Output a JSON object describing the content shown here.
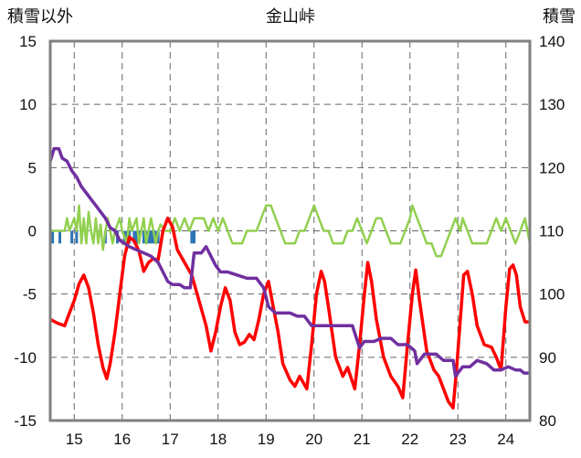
{
  "chart_data": {
    "type": "line",
    "title": "金山峠",
    "y_left_label": "積雪以外",
    "y_right_label": "積雪",
    "y_left_range": [
      -15,
      15
    ],
    "y_left_ticks": [
      "15",
      "10",
      "5",
      "0",
      "-5",
      "-10",
      "-15"
    ],
    "y_right_range": [
      80,
      140
    ],
    "y_right_ticks": [
      "140",
      "130",
      "120",
      "110",
      "100",
      "90",
      "80"
    ],
    "x_range": [
      14.5,
      24.5
    ],
    "x_ticks": [
      "15",
      "16",
      "17",
      "18",
      "19",
      "20",
      "21",
      "22",
      "23",
      "24"
    ],
    "grid": true,
    "colors": {
      "temperature": "#ff0000",
      "snow_depth": "#7030a0",
      "wind": "#92d050",
      "precip": "#2e75b6",
      "grid": "#666666",
      "frame": "#808080"
    },
    "series": [
      {
        "key": "temperature",
        "axis": "left",
        "points": [
          [
            14.5,
            -7
          ],
          [
            14.65,
            -7.3
          ],
          [
            14.8,
            -7.5
          ],
          [
            14.9,
            -6.5
          ],
          [
            15.0,
            -5.5
          ],
          [
            15.1,
            -4.2
          ],
          [
            15.2,
            -3.5
          ],
          [
            15.3,
            -4.5
          ],
          [
            15.4,
            -6.5
          ],
          [
            15.5,
            -9
          ],
          [
            15.6,
            -10.8
          ],
          [
            15.68,
            -11.7
          ],
          [
            15.75,
            -10.5
          ],
          [
            15.85,
            -8
          ],
          [
            15.95,
            -5
          ],
          [
            16.05,
            -2
          ],
          [
            16.15,
            -0.5
          ],
          [
            16.25,
            -0.8
          ],
          [
            16.35,
            -1.6
          ],
          [
            16.45,
            -3.2
          ],
          [
            16.55,
            -2.5
          ],
          [
            16.65,
            -2.2
          ],
          [
            16.75,
            -2.3
          ],
          [
            16.85,
            0
          ],
          [
            16.95,
            1.0
          ],
          [
            17.05,
            0.3
          ],
          [
            17.15,
            -1.5
          ],
          [
            17.3,
            -2.5
          ],
          [
            17.45,
            -3.5
          ],
          [
            17.6,
            -5.5
          ],
          [
            17.75,
            -7.5
          ],
          [
            17.85,
            -9.5
          ],
          [
            17.95,
            -8
          ],
          [
            18.05,
            -6
          ],
          [
            18.15,
            -4.5
          ],
          [
            18.25,
            -5.5
          ],
          [
            18.35,
            -8
          ],
          [
            18.45,
            -9
          ],
          [
            18.55,
            -8.8
          ],
          [
            18.65,
            -8.2
          ],
          [
            18.75,
            -8.6
          ],
          [
            18.85,
            -7
          ],
          [
            18.95,
            -5
          ],
          [
            19.05,
            -4
          ],
          [
            19.15,
            -6
          ],
          [
            19.25,
            -8
          ],
          [
            19.35,
            -10.5
          ],
          [
            19.5,
            -11.8
          ],
          [
            19.6,
            -12.3
          ],
          [
            19.7,
            -11.5
          ],
          [
            19.85,
            -12.5
          ],
          [
            19.95,
            -9
          ],
          [
            20.05,
            -5
          ],
          [
            20.15,
            -3.2
          ],
          [
            20.22,
            -4
          ],
          [
            20.3,
            -6
          ],
          [
            20.45,
            -10
          ],
          [
            20.6,
            -11.5
          ],
          [
            20.7,
            -10.8
          ],
          [
            20.85,
            -12.5
          ],
          [
            20.95,
            -9
          ],
          [
            21.05,
            -5
          ],
          [
            21.12,
            -2.5
          ],
          [
            21.2,
            -4
          ],
          [
            21.3,
            -7
          ],
          [
            21.45,
            -10
          ],
          [
            21.6,
            -11.5
          ],
          [
            21.75,
            -12.3
          ],
          [
            21.85,
            -13.2
          ],
          [
            21.95,
            -9
          ],
          [
            22.05,
            -5
          ],
          [
            22.12,
            -3.1
          ],
          [
            22.2,
            -5.5
          ],
          [
            22.35,
            -9.5
          ],
          [
            22.5,
            -11
          ],
          [
            22.6,
            -11.5
          ],
          [
            22.7,
            -12.5
          ],
          [
            22.8,
            -13.5
          ],
          [
            22.9,
            -14
          ],
          [
            22.97,
            -11
          ],
          [
            23.05,
            -7
          ],
          [
            23.12,
            -3.5
          ],
          [
            23.2,
            -3.2
          ],
          [
            23.3,
            -5
          ],
          [
            23.4,
            -7.5
          ],
          [
            23.55,
            -9
          ],
          [
            23.7,
            -9.2
          ],
          [
            23.8,
            -10
          ],
          [
            23.9,
            -11
          ],
          [
            24.0,
            -6
          ],
          [
            24.08,
            -3
          ],
          [
            24.15,
            -2.7
          ],
          [
            24.22,
            -3.5
          ],
          [
            24.3,
            -6
          ],
          [
            24.4,
            -7.2
          ],
          [
            24.5,
            -7.2
          ]
        ]
      },
      {
        "key": "snow_depth",
        "axis": "right",
        "points": [
          [
            14.5,
            121
          ],
          [
            14.58,
            123
          ],
          [
            14.68,
            123
          ],
          [
            14.75,
            121.5
          ],
          [
            14.85,
            121
          ],
          [
            14.95,
            119.5
          ],
          [
            15.05,
            118.5
          ],
          [
            15.15,
            117
          ],
          [
            15.25,
            116
          ],
          [
            15.35,
            115
          ],
          [
            15.45,
            114
          ],
          [
            15.55,
            113
          ],
          [
            15.65,
            112
          ],
          [
            15.75,
            110.5
          ],
          [
            15.85,
            110
          ],
          [
            15.95,
            108.5
          ],
          [
            16.05,
            108
          ],
          [
            16.15,
            107.5
          ],
          [
            16.3,
            107
          ],
          [
            16.45,
            106.5
          ],
          [
            16.6,
            106
          ],
          [
            16.75,
            105
          ],
          [
            16.85,
            103.5
          ],
          [
            16.95,
            102
          ],
          [
            17.05,
            101.5
          ],
          [
            17.2,
            101.5
          ],
          [
            17.3,
            101
          ],
          [
            17.42,
            101
          ],
          [
            17.5,
            106.5
          ],
          [
            17.65,
            106.5
          ],
          [
            17.75,
            107.5
          ],
          [
            17.85,
            106
          ],
          [
            17.95,
            104.5
          ],
          [
            18.05,
            103.5
          ],
          [
            18.2,
            103.5
          ],
          [
            18.4,
            103
          ],
          [
            18.6,
            102.5
          ],
          [
            18.8,
            102.5
          ],
          [
            18.95,
            101
          ],
          [
            19.05,
            98
          ],
          [
            19.2,
            97
          ],
          [
            19.5,
            97
          ],
          [
            19.65,
            96.5
          ],
          [
            19.8,
            96.5
          ],
          [
            19.95,
            95
          ],
          [
            20.2,
            95
          ],
          [
            20.6,
            95
          ],
          [
            20.8,
            95
          ],
          [
            20.95,
            91.5
          ],
          [
            21.05,
            92.5
          ],
          [
            21.25,
            92.5
          ],
          [
            21.4,
            93
          ],
          [
            21.6,
            93
          ],
          [
            21.75,
            92
          ],
          [
            21.95,
            92
          ],
          [
            22.1,
            91
          ],
          [
            22.15,
            89
          ],
          [
            22.3,
            90.5
          ],
          [
            22.55,
            90.5
          ],
          [
            22.7,
            89.5
          ],
          [
            22.9,
            89.5
          ],
          [
            22.95,
            87
          ],
          [
            23.1,
            88.5
          ],
          [
            23.25,
            88.5
          ],
          [
            23.4,
            89.5
          ],
          [
            23.6,
            89
          ],
          [
            23.75,
            88
          ],
          [
            23.9,
            88
          ],
          [
            24.05,
            88.5
          ],
          [
            24.2,
            88
          ],
          [
            24.3,
            88
          ],
          [
            24.38,
            87.5
          ],
          [
            24.5,
            87.5
          ]
        ]
      },
      {
        "key": "wind",
        "axis": "left",
        "points": [
          [
            14.5,
            0
          ],
          [
            14.8,
            0
          ],
          [
            14.85,
            1
          ],
          [
            14.9,
            0
          ],
          [
            15.0,
            1
          ],
          [
            15.05,
            0
          ],
          [
            15.1,
            2
          ],
          [
            15.15,
            -1
          ],
          [
            15.2,
            1
          ],
          [
            15.25,
            -1
          ],
          [
            15.3,
            1.5
          ],
          [
            15.35,
            0
          ],
          [
            15.4,
            -1
          ],
          [
            15.45,
            1
          ],
          [
            15.5,
            -1
          ],
          [
            15.55,
            0.5
          ],
          [
            15.6,
            -1.5
          ],
          [
            15.65,
            0
          ],
          [
            15.7,
            1
          ],
          [
            15.75,
            0
          ],
          [
            15.8,
            -1
          ],
          [
            15.85,
            0
          ],
          [
            15.95,
            1
          ],
          [
            16.0,
            0
          ],
          [
            16.1,
            -1
          ],
          [
            16.15,
            1
          ],
          [
            16.2,
            0
          ],
          [
            16.3,
            1
          ],
          [
            16.35,
            -1
          ],
          [
            16.4,
            0
          ],
          [
            16.45,
            1
          ],
          [
            16.5,
            -1
          ],
          [
            16.55,
            0
          ],
          [
            16.6,
            1
          ],
          [
            16.65,
            0
          ],
          [
            16.7,
            -1
          ],
          [
            16.75,
            0
          ],
          [
            16.8,
            0.5
          ],
          [
            16.9,
            0
          ],
          [
            17.0,
            0
          ],
          [
            17.1,
            1
          ],
          [
            17.2,
            0
          ],
          [
            17.3,
            1
          ],
          [
            17.4,
            0
          ],
          [
            17.5,
            1
          ],
          [
            17.6,
            1
          ],
          [
            17.7,
            1
          ],
          [
            17.8,
            0
          ],
          [
            17.9,
            1
          ],
          [
            18.0,
            0
          ],
          [
            18.1,
            1
          ],
          [
            18.2,
            0
          ],
          [
            18.3,
            -1
          ],
          [
            18.4,
            -1
          ],
          [
            18.5,
            -1
          ],
          [
            18.6,
            0
          ],
          [
            18.7,
            0
          ],
          [
            18.8,
            0
          ],
          [
            18.9,
            1
          ],
          [
            19.0,
            2
          ],
          [
            19.1,
            2
          ],
          [
            19.2,
            1
          ],
          [
            19.3,
            0
          ],
          [
            19.4,
            -1
          ],
          [
            19.5,
            -1
          ],
          [
            19.6,
            -1
          ],
          [
            19.7,
            0
          ],
          [
            19.8,
            0
          ],
          [
            19.9,
            1
          ],
          [
            20.0,
            2
          ],
          [
            20.1,
            1
          ],
          [
            20.2,
            0
          ],
          [
            20.3,
            0
          ],
          [
            20.4,
            -1
          ],
          [
            20.5,
            -1
          ],
          [
            20.6,
            -1
          ],
          [
            20.7,
            0
          ],
          [
            20.8,
            0
          ],
          [
            20.9,
            1
          ],
          [
            21.0,
            0
          ],
          [
            21.1,
            -1
          ],
          [
            21.2,
            0
          ],
          [
            21.3,
            1
          ],
          [
            21.4,
            1
          ],
          [
            21.5,
            0
          ],
          [
            21.6,
            -1
          ],
          [
            21.7,
            -1
          ],
          [
            21.8,
            -1
          ],
          [
            21.9,
            0
          ],
          [
            22.0,
            1
          ],
          [
            22.05,
            2
          ],
          [
            22.15,
            1
          ],
          [
            22.25,
            0
          ],
          [
            22.35,
            -1
          ],
          [
            22.45,
            -1
          ],
          [
            22.55,
            -2
          ],
          [
            22.65,
            -2
          ],
          [
            22.75,
            -1
          ],
          [
            22.85,
            0
          ],
          [
            22.95,
            1
          ],
          [
            23.05,
            0
          ],
          [
            23.1,
            1
          ],
          [
            23.2,
            0
          ],
          [
            23.3,
            -1
          ],
          [
            23.4,
            -1
          ],
          [
            23.5,
            -1
          ],
          [
            23.6,
            -1
          ],
          [
            23.7,
            0
          ],
          [
            23.8,
            1
          ],
          [
            23.9,
            0
          ],
          [
            24.0,
            1
          ],
          [
            24.1,
            0
          ],
          [
            24.2,
            -1
          ],
          [
            24.3,
            0
          ],
          [
            24.4,
            1
          ],
          [
            24.5,
            -1
          ]
        ]
      }
    ],
    "precip_bars_x": [
      14.55,
      14.7,
      14.95,
      15.05,
      15.65,
      15.9,
      16.05,
      16.1,
      16.15,
      16.25,
      16.3,
      16.35,
      16.45,
      16.5,
      16.55,
      16.6,
      16.65,
      16.7,
      16.75,
      17.45,
      17.5
    ]
  }
}
